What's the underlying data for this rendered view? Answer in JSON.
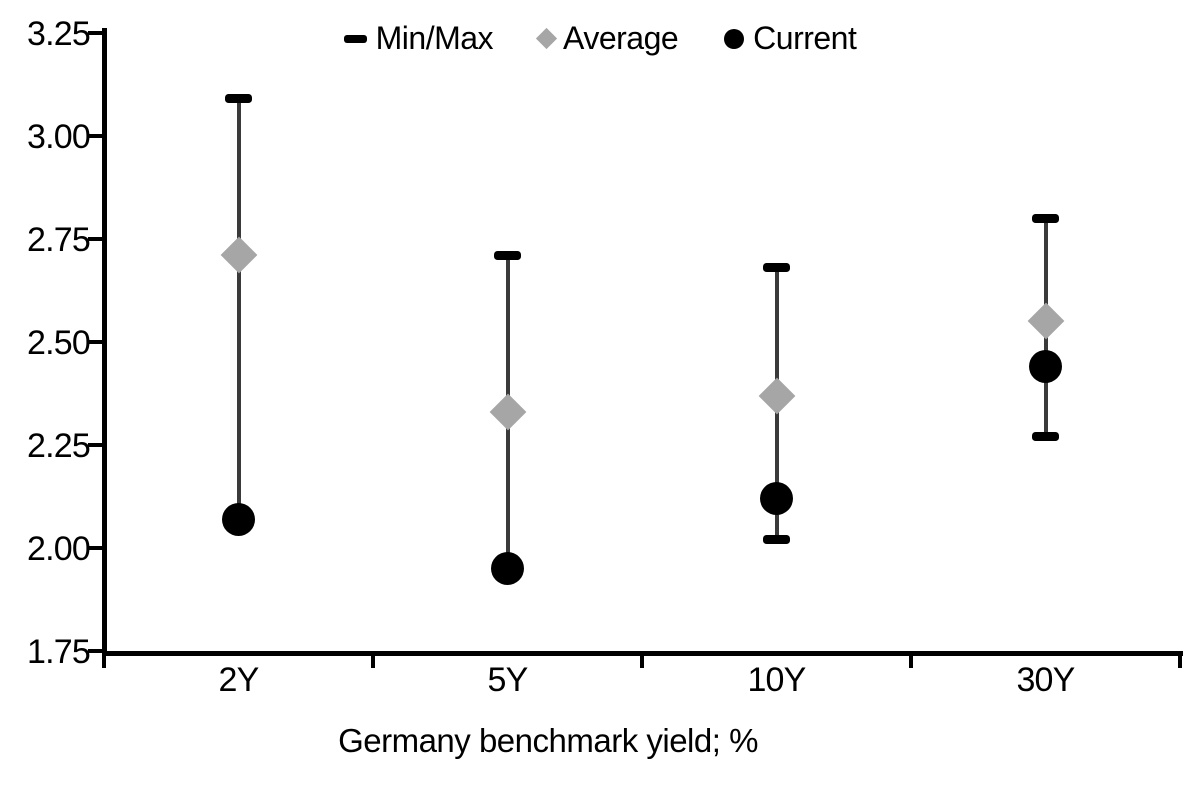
{
  "chart_data": {
    "type": "scatter",
    "title": "",
    "xlabel": "Germany benchmark yield; %",
    "ylabel": "",
    "categories": [
      "2Y",
      "5Y",
      "10Y",
      "30Y"
    ],
    "ylim": [
      1.75,
      3.25
    ],
    "yticks": [
      1.75,
      2.0,
      2.25,
      2.5,
      2.75,
      3.0,
      3.25
    ],
    "ytick_labels": [
      "1.75",
      "2.00",
      "2.25",
      "2.50",
      "2.75",
      "3.00",
      "3.25"
    ],
    "grid": false,
    "legend_position": "top-center",
    "series": [
      {
        "name": "Min/Max",
        "kind": "range",
        "marker": "dash",
        "min": [
          2.07,
          1.95,
          2.02,
          2.27
        ],
        "max": [
          3.09,
          2.71,
          2.68,
          2.8
        ]
      },
      {
        "name": "Average",
        "kind": "point",
        "marker": "diamond",
        "values": [
          2.71,
          2.33,
          2.37,
          2.55
        ]
      },
      {
        "name": "Current",
        "kind": "point",
        "marker": "circle",
        "values": [
          2.07,
          1.95,
          2.12,
          2.44
        ]
      }
    ],
    "colors": {
      "range_line": "#3a3a3a",
      "cap": "#000000",
      "average": "#a6a6a6",
      "current": "#000000",
      "axis": "#000000",
      "text": "#000000",
      "background": "#ffffff"
    }
  }
}
